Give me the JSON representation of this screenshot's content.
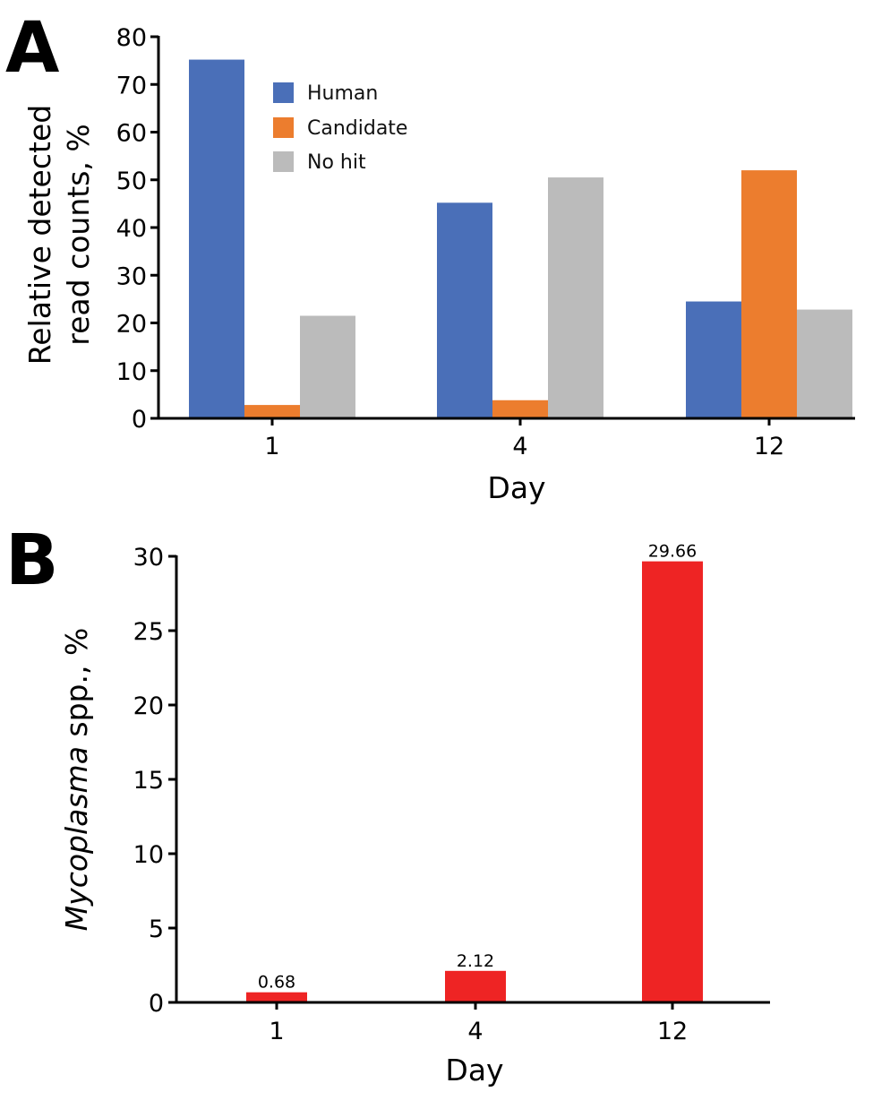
{
  "panels": {
    "a": {
      "letter": "A"
    },
    "b": {
      "letter": "B"
    }
  },
  "chart_data": [
    {
      "type": "bar",
      "panel": "A",
      "title": "",
      "xlabel": "Day",
      "ylabel": "Relative detected read counts, %",
      "ylabel_lines": [
        "Relative detected",
        "read counts, %"
      ],
      "categories": [
        "1",
        "4",
        "12"
      ],
      "ylim": [
        0,
        80
      ],
      "yticks": [
        0,
        10,
        20,
        30,
        40,
        50,
        60,
        70,
        80
      ],
      "grid": false,
      "legend_position": "top-center",
      "series": [
        {
          "name": "Human",
          "color": "#4a6fb8",
          "values": [
            75.2,
            45.2,
            24.5
          ]
        },
        {
          "name": "Candidate",
          "color": "#ec7d2e",
          "values": [
            2.8,
            3.8,
            52.0
          ]
        },
        {
          "name": "No hit",
          "color": "#bbbbbb",
          "values": [
            21.5,
            50.5,
            22.8
          ]
        }
      ]
    },
    {
      "type": "bar",
      "panel": "B",
      "title": "",
      "xlabel": "Day",
      "ylabel": "Mycoplasma spp., %",
      "ylabel_italic": "Mycoplasma",
      "ylabel_rest": " spp., %",
      "categories": [
        "1",
        "4",
        "12"
      ],
      "ylim": [
        0,
        30
      ],
      "yticks": [
        0,
        5,
        10,
        15,
        20,
        25,
        30
      ],
      "grid": false,
      "color": "#ee2424",
      "values": [
        0.68,
        2.12,
        29.66
      ],
      "value_labels": [
        "0.68",
        "2.12",
        "29.66"
      ]
    }
  ]
}
